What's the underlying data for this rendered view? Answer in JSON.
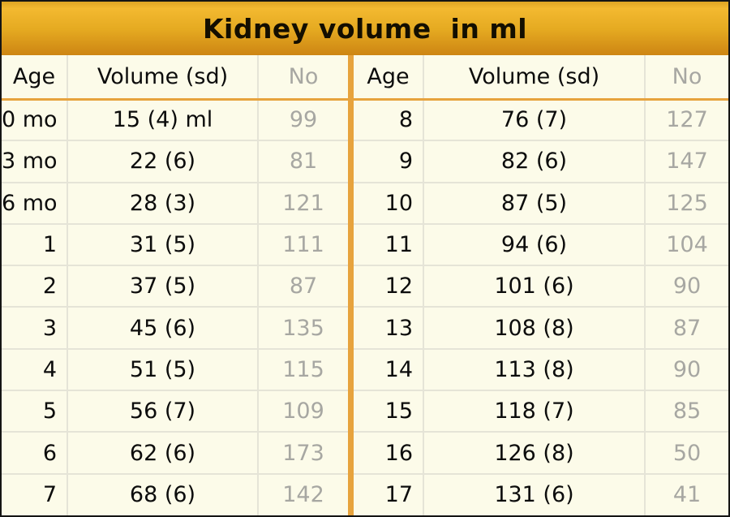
{
  "title": "Kidney volume  in ml",
  "colors": {
    "accent_orange": "#e7a33d",
    "header_gold_top": "#f3b930",
    "header_gold_bottom": "#cd8513",
    "cell_background": "#fcfbe9",
    "muted_text": "#a7a7a2",
    "grid_line": "#e5e4d7",
    "frame": "#141414"
  },
  "table": {
    "headers": {
      "age": "Age",
      "volume_left": "Volume (sd)",
      "volume_right": "Volume  (sd)",
      "no": "No"
    },
    "left_rows": [
      {
        "age": "0 mo",
        "volume": "15 (4) ml",
        "no": "99"
      },
      {
        "age": "3 mo",
        "volume": "22 (6)",
        "no": "81"
      },
      {
        "age": "6 mo",
        "volume": "28 (3)",
        "no": "121"
      },
      {
        "age": "1",
        "volume": "31 (5)",
        "no": "111"
      },
      {
        "age": "2",
        "volume": "37 (5)",
        "no": "87"
      },
      {
        "age": "3",
        "volume": "45 (6)",
        "no": "135"
      },
      {
        "age": "4",
        "volume": "51 (5)",
        "no": "115"
      },
      {
        "age": "5",
        "volume": "56 (7)",
        "no": "109"
      },
      {
        "age": "6",
        "volume": "62 (6)",
        "no": "173"
      },
      {
        "age": "7",
        "volume": "68 (6)",
        "no": "142"
      }
    ],
    "right_rows": [
      {
        "age": "8",
        "volume": "76 (7)",
        "no": "127"
      },
      {
        "age": "9",
        "volume": "82 (6)",
        "no": "147"
      },
      {
        "age": "10",
        "volume": "87 (5)",
        "no": "125"
      },
      {
        "age": "11",
        "volume": "94 (6)",
        "no": "104"
      },
      {
        "age": "12",
        "volume": "101 (6)",
        "no": "90"
      },
      {
        "age": "13",
        "volume": "108 (8)",
        "no": "87"
      },
      {
        "age": "14",
        "volume": "113 (8)",
        "no": "90"
      },
      {
        "age": "15",
        "volume": "118 (7)",
        "no": "85"
      },
      {
        "age": "16",
        "volume": "126 (8)",
        "no": "50"
      },
      {
        "age": "17",
        "volume": "131 (6)",
        "no": "41"
      }
    ]
  },
  "chart_data": {
    "type": "table",
    "title": "Kidney volume  in ml",
    "columns": [
      "Age",
      "Volume (sd)",
      "No"
    ],
    "rows": [
      [
        "0 mo",
        "15 (4) ml",
        99
      ],
      [
        "3 mo",
        "22 (6)",
        81
      ],
      [
        "6 mo",
        "28 (3)",
        121
      ],
      [
        "1",
        "31 (5)",
        111
      ],
      [
        "2",
        "37 (5)",
        87
      ],
      [
        "3",
        "45 (6)",
        135
      ],
      [
        "4",
        "51 (5)",
        115
      ],
      [
        "5",
        "56 (7)",
        109
      ],
      [
        "6",
        "62 (6)",
        173
      ],
      [
        "7",
        "68 (6)",
        142
      ],
      [
        "8",
        "76 (7)",
        127
      ],
      [
        "9",
        "82 (6)",
        147
      ],
      [
        "10",
        "87 (5)",
        125
      ],
      [
        "11",
        "94 (6)",
        104
      ],
      [
        "12",
        "101 (6)",
        90
      ],
      [
        "13",
        "108 (8)",
        87
      ],
      [
        "14",
        "113 (8)",
        90
      ],
      [
        "15",
        "118 (7)",
        85
      ],
      [
        "16",
        "126 (8)",
        50
      ],
      [
        "17",
        "131 (6)",
        41
      ]
    ],
    "layout": "two side-by-side halves split after age 7, separated by orange divider"
  }
}
